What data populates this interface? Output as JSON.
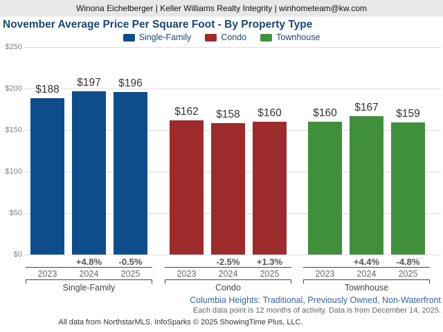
{
  "header": {
    "contact": "Winona Eichelberger | Keller Williams Realty Integrity | winhometeam@kw.com"
  },
  "title": "November Average Price Per Square Foot - By Property Type",
  "legend": [
    {
      "label": "Single-Family",
      "color": "#0e4d8c"
    },
    {
      "label": "Condo",
      "color": "#9e2b2b"
    },
    {
      "label": "Townhouse",
      "color": "#3f8f3b"
    }
  ],
  "chart_data": {
    "type": "bar",
    "title": "November Average Price Per Square Foot - By Property Type",
    "xlabel": "",
    "ylabel": "",
    "ylim": [
      0,
      250
    ],
    "grid": true,
    "legend_position": "top",
    "ytick_values": [
      250,
      200,
      150,
      100,
      50,
      0
    ],
    "ytick_labels": [
      "$250",
      "$200",
      "$150",
      "$100",
      "$50",
      "$0"
    ],
    "categories": [
      "2023",
      "2024",
      "2025"
    ],
    "groups": [
      {
        "name": "Single-Family",
        "color": "#0e4d8c",
        "years": [
          "2023",
          "2024",
          "2025"
        ],
        "values": [
          188,
          197,
          196
        ],
        "value_labels": [
          "$188",
          "$197",
          "$196"
        ],
        "pct_changes": [
          "",
          "+4.8%",
          "-0.5%"
        ]
      },
      {
        "name": "Condo",
        "color": "#9e2b2b",
        "years": [
          "2023",
          "2024",
          "2025"
        ],
        "values": [
          162,
          158,
          160
        ],
        "value_labels": [
          "$162",
          "$158",
          "$160"
        ],
        "pct_changes": [
          "",
          "-2.5%",
          "+1.3%"
        ]
      },
      {
        "name": "Townhouse",
        "color": "#3f8f3b",
        "years": [
          "2023",
          "2024",
          "2025"
        ],
        "values": [
          160,
          167,
          159
        ],
        "value_labels": [
          "$160",
          "$167",
          "$159"
        ],
        "pct_changes": [
          "",
          "+4.4%",
          "-4.8%"
        ]
      }
    ]
  },
  "footer": {
    "filter_line": "Columbia Heights: Traditional, Previously Owned, Non-Waterfront",
    "data_note": "Each data point is 12 months of activity. Data is from December 14, 2025.",
    "attribution": "All data from NorthstarMLS. InfoSparks © 2025 ShowingTime Plus, LLC."
  }
}
